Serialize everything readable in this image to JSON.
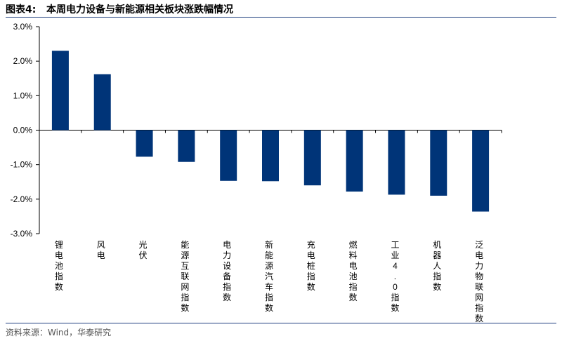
{
  "figure": {
    "label": "图表4:",
    "title": "本周电力设备与新能源相关板块涨跌幅情况",
    "source": "资料来源：Wind，华泰研究"
  },
  "colors": {
    "bar": "#003478",
    "axis": "#000000"
  },
  "chart_data": {
    "type": "bar",
    "title": "本周电力设备与新能源相关板块涨跌幅情况",
    "xlabel": "",
    "ylabel": "",
    "categories": [
      "锂电池指数",
      "风电",
      "光伏",
      "能源互联网指数",
      "电力设备指数",
      "新能源汽车指数",
      "充电桩指数",
      "燃料电池指数",
      "工业4.0指数",
      "机器人指数",
      "泛电力物联网指数"
    ],
    "values": [
      2.3,
      1.62,
      -0.77,
      -0.92,
      -1.47,
      -1.48,
      -1.6,
      -1.78,
      -1.87,
      -1.9,
      -2.36
    ],
    "ylim": [
      -3.0,
      3.0
    ],
    "yticks": [
      3.0,
      2.0,
      1.0,
      0.0,
      -1.0,
      -2.0,
      -3.0
    ],
    "ytick_labels": [
      "3.0%",
      "2.0%",
      "1.0%",
      "0.0%",
      "-1.0%",
      "-2.0%",
      "-3.0%"
    ],
    "grid": false,
    "legend": "none"
  }
}
